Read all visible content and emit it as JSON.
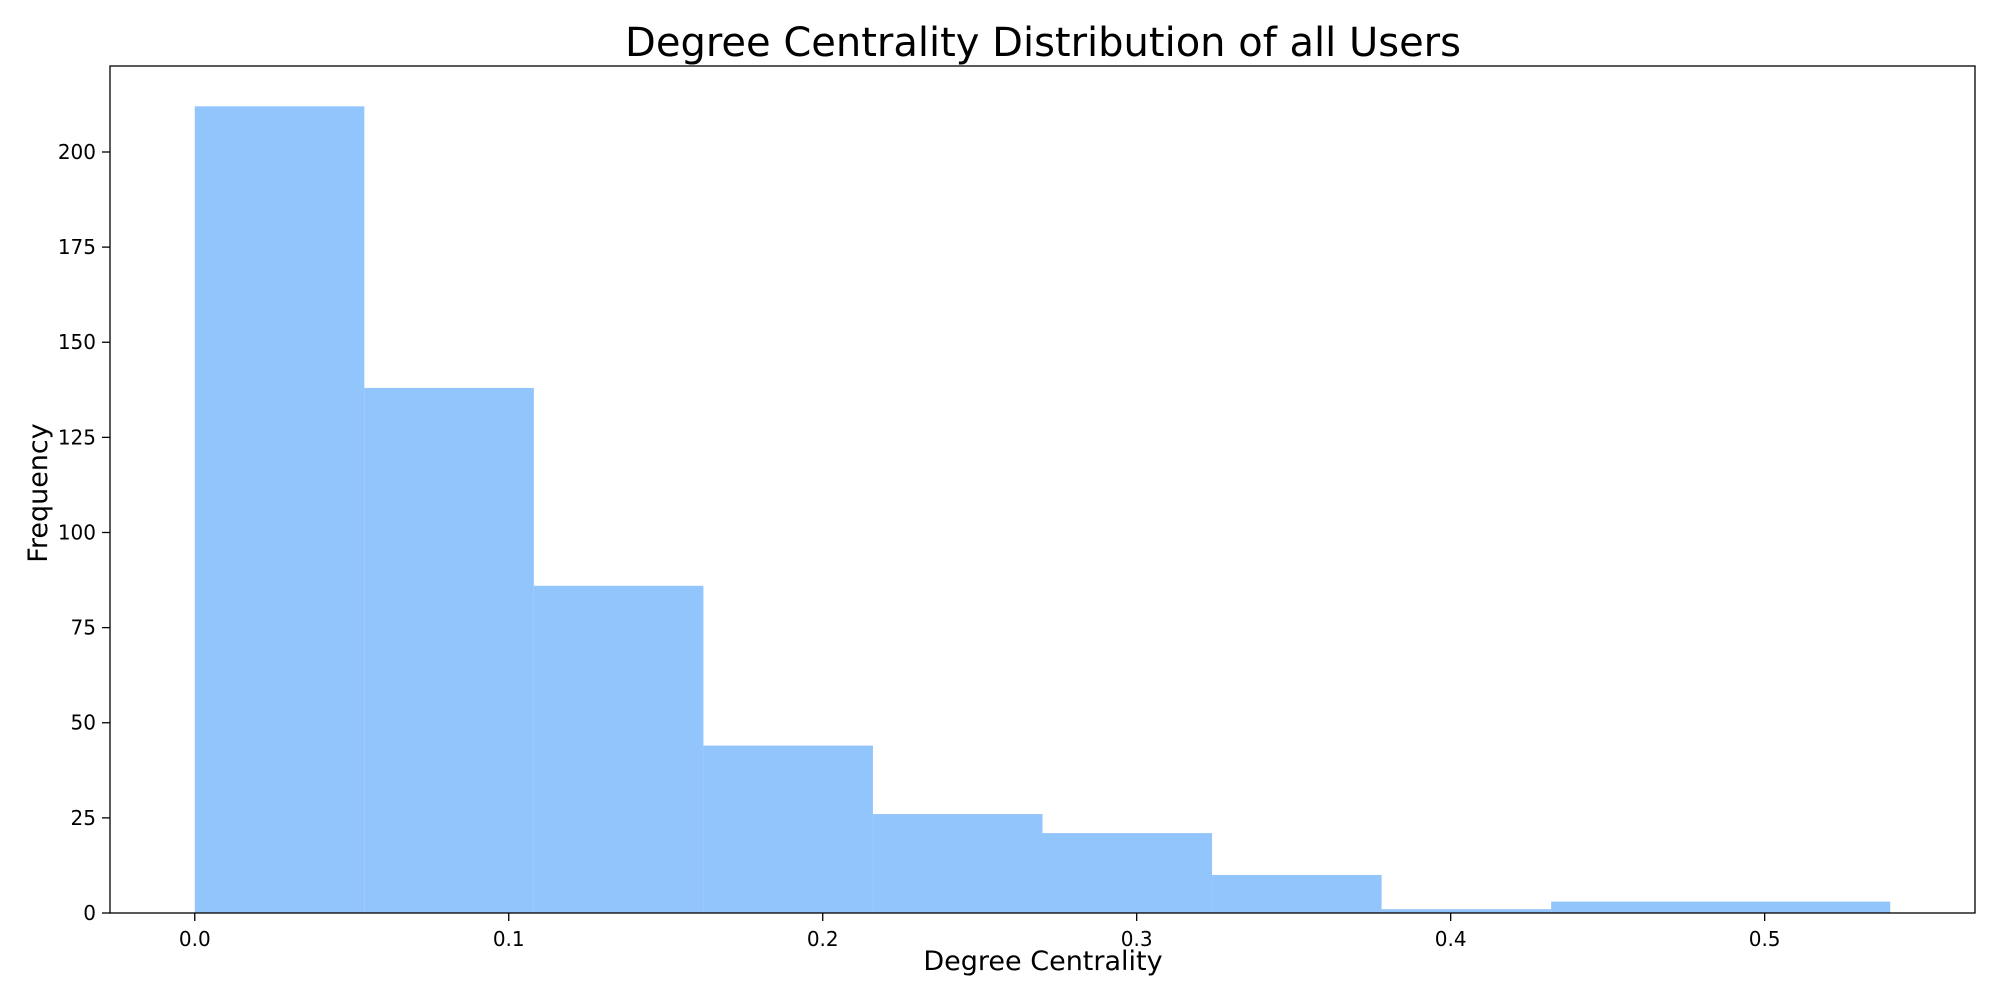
{
  "colors": {
    "bar": "#93c5fd",
    "axis": "#000000",
    "background": "#ffffff"
  },
  "chart_data": {
    "type": "bar",
    "title": "Degree Centrality Distribution of all Users",
    "xlabel": "Degree Centrality",
    "ylabel": "Frequency",
    "xlim": [
      -0.027,
      0.567
    ],
    "ylim": [
      0,
      222.6
    ],
    "grid": false,
    "legend": "none",
    "bins": [
      {
        "x0": 0.0,
        "x1": 0.054,
        "count": 212
      },
      {
        "x0": 0.054,
        "x1": 0.108,
        "count": 138
      },
      {
        "x0": 0.108,
        "x1": 0.162,
        "count": 86
      },
      {
        "x0": 0.162,
        "x1": 0.216,
        "count": 44
      },
      {
        "x0": 0.216,
        "x1": 0.27,
        "count": 26
      },
      {
        "x0": 0.27,
        "x1": 0.324,
        "count": 21
      },
      {
        "x0": 0.324,
        "x1": 0.378,
        "count": 10
      },
      {
        "x0": 0.378,
        "x1": 0.432,
        "count": 1
      },
      {
        "x0": 0.432,
        "x1": 0.54,
        "count": 3
      }
    ],
    "xticks": [
      {
        "value": 0.0,
        "label": "0.0"
      },
      {
        "value": 0.1,
        "label": "0.1"
      },
      {
        "value": 0.2,
        "label": "0.2"
      },
      {
        "value": 0.3,
        "label": "0.3"
      },
      {
        "value": 0.4,
        "label": "0.4"
      },
      {
        "value": 0.5,
        "label": "0.5"
      }
    ],
    "yticks": [
      {
        "value": 0,
        "label": "0"
      },
      {
        "value": 25,
        "label": "25"
      },
      {
        "value": 50,
        "label": "50"
      },
      {
        "value": 75,
        "label": "75"
      },
      {
        "value": 100,
        "label": "100"
      },
      {
        "value": 125,
        "label": "125"
      },
      {
        "value": 150,
        "label": "150"
      },
      {
        "value": 175,
        "label": "175"
      },
      {
        "value": 200,
        "label": "200"
      }
    ]
  }
}
